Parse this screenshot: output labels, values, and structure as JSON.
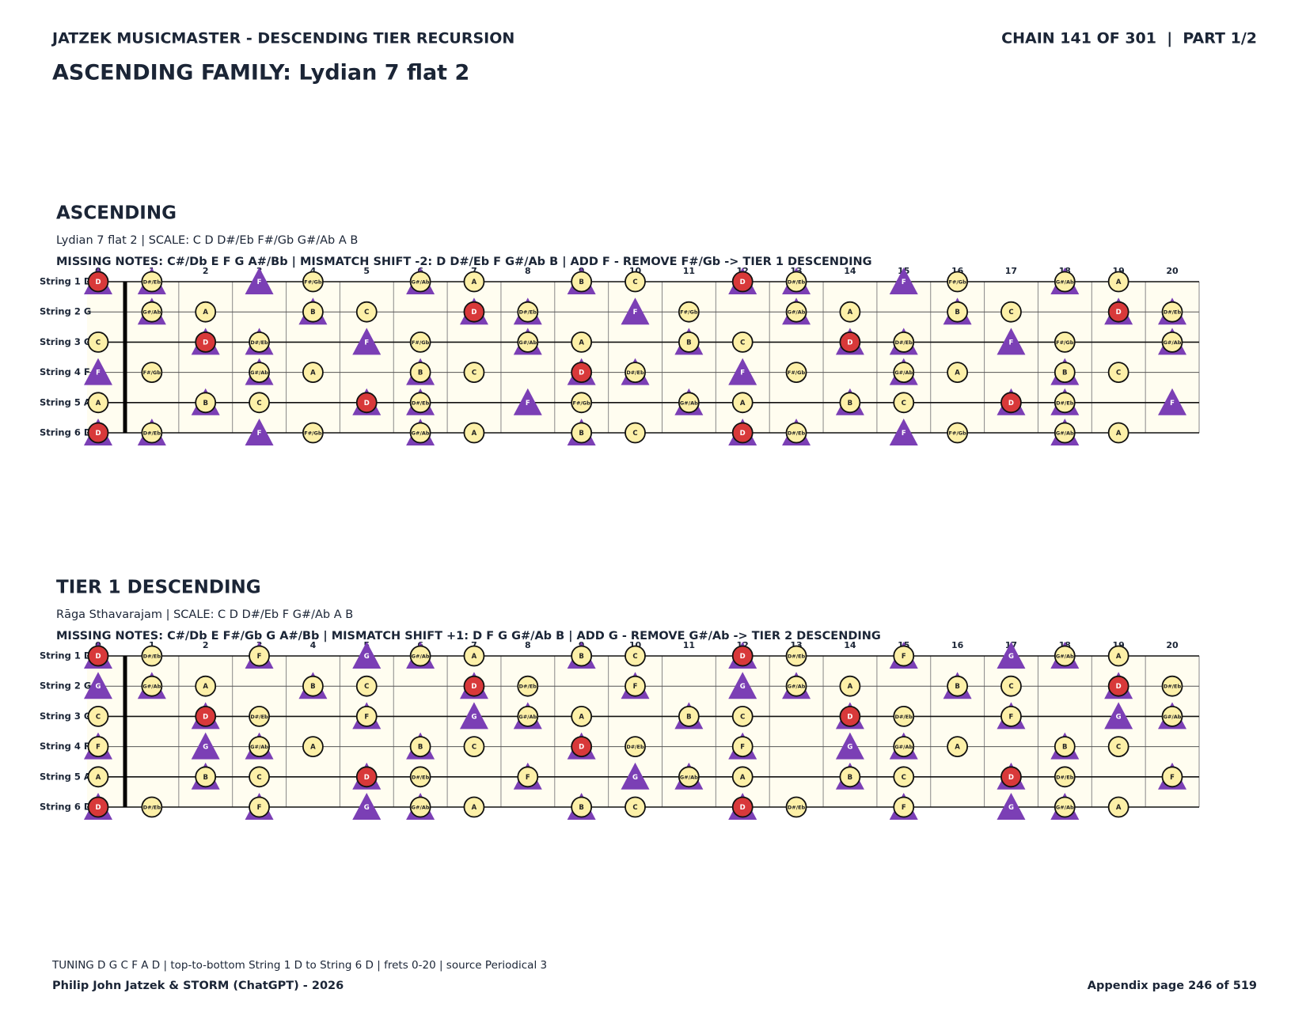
{
  "header": {
    "left": "JATZEK MUSICMASTER - DESCENDING TIER RECURSION",
    "right": "CHAIN 141 OF 301  |  PART 1/2",
    "title": "ASCENDING FAMILY: Lydian 7 flat 2"
  },
  "boards": [
    {
      "heading": "ASCENDING",
      "scale_line": "Lydian 7 flat 2  |  SCALE: C D D#/Eb F#/Gb G#/Ab A B",
      "missing_line": "MISSING NOTES: C#/Db E F G A#/Bb  |  MISMATCH SHIFT -2: D D#/Eb F G#/Ab B  |  ADD F - REMOVE F#/Gb -> TIER 1 DESCENDING",
      "string_labels": [
        "String 1 D",
        "String 2 G",
        "String 3 C",
        "String 4 F",
        "String 5 A",
        "String 6 D"
      ],
      "frets": [
        0,
        1,
        2,
        3,
        4,
        5,
        6,
        7,
        8,
        9,
        10,
        11,
        12,
        13,
        14,
        15,
        16,
        17,
        18,
        19,
        20
      ],
      "root": "D",
      "scale_notes": [
        "C",
        "D",
        "D#/Eb",
        "F#/Gb",
        "G#/Ab",
        "A",
        "B"
      ],
      "shift_notes": [
        "D",
        "D#/Eb",
        "F",
        "G#/Ab",
        "B"
      ],
      "notes": [
        [
          "D",
          "D#/Eb",
          null,
          "F",
          "F#/Gb",
          null,
          "G#/Ab",
          "A",
          null,
          "B",
          "C",
          null,
          "D",
          "D#/Eb",
          null,
          "F",
          "F#/Gb",
          null,
          "G#/Ab",
          "A",
          null
        ],
        [
          null,
          "G#/Ab",
          "A",
          null,
          "B",
          "C",
          null,
          "D",
          "D#/Eb",
          null,
          "F",
          "F#/Gb",
          null,
          "G#/Ab",
          "A",
          null,
          "B",
          "C",
          null,
          "D",
          "D#/Eb"
        ],
        [
          "C",
          null,
          "D",
          "D#/Eb",
          null,
          "F",
          "F#/Gb",
          null,
          "G#/Ab",
          "A",
          null,
          "B",
          "C",
          null,
          "D",
          "D#/Eb",
          null,
          "F",
          "F#/Gb",
          null,
          "G#/Ab"
        ],
        [
          "F",
          "F#/Gb",
          null,
          "G#/Ab",
          "A",
          null,
          "B",
          "C",
          null,
          "D",
          "D#/Eb",
          null,
          "F",
          "F#/Gb",
          null,
          "G#/Ab",
          "A",
          null,
          "B",
          "C",
          null
        ],
        [
          "A",
          null,
          "B",
          "C",
          null,
          "D",
          "D#/Eb",
          null,
          "F",
          "F#/Gb",
          null,
          "G#/Ab",
          "A",
          null,
          "B",
          "C",
          null,
          "D",
          "D#/Eb",
          null,
          "F"
        ],
        [
          "D",
          "D#/Eb",
          null,
          "F",
          "F#/Gb",
          null,
          "G#/Ab",
          "A",
          null,
          "B",
          "C",
          null,
          "D",
          "D#/Eb",
          null,
          "F",
          "F#/Gb",
          null,
          "G#/Ab",
          "A",
          null
        ]
      ]
    },
    {
      "heading": "TIER 1 DESCENDING",
      "scale_line": "Rāga Sthavarajam  |  SCALE: C D D#/Eb F G#/Ab A B",
      "missing_line": "MISSING NOTES: C#/Db E F#/Gb G A#/Bb  |  MISMATCH SHIFT +1: D F G G#/Ab B  |  ADD G - REMOVE G#/Ab -> TIER 2 DESCENDING",
      "string_labels": [
        "String 1 D",
        "String 2 G",
        "String 3 C",
        "String 4 F",
        "String 5 A",
        "String 6 D"
      ],
      "frets": [
        0,
        1,
        2,
        3,
        4,
        5,
        6,
        7,
        8,
        9,
        10,
        11,
        12,
        13,
        14,
        15,
        16,
        17,
        18,
        19,
        20
      ],
      "root": "D",
      "scale_notes": [
        "C",
        "D",
        "D#/Eb",
        "F",
        "G#/Ab",
        "A",
        "B"
      ],
      "shift_notes": [
        "D",
        "F",
        "G",
        "G#/Ab",
        "B"
      ],
      "notes": [
        [
          "D",
          "D#/Eb",
          null,
          "F",
          null,
          "G",
          "G#/Ab",
          "A",
          null,
          "B",
          "C",
          null,
          "D",
          "D#/Eb",
          null,
          "F",
          null,
          "G",
          "G#/Ab",
          "A",
          null
        ],
        [
          "G",
          "G#/Ab",
          "A",
          null,
          "B",
          "C",
          null,
          "D",
          "D#/Eb",
          null,
          "F",
          null,
          "G",
          "G#/Ab",
          "A",
          null,
          "B",
          "C",
          null,
          "D",
          "D#/Eb"
        ],
        [
          "C",
          null,
          "D",
          "D#/Eb",
          null,
          "F",
          null,
          "G",
          "G#/Ab",
          "A",
          null,
          "B",
          "C",
          null,
          "D",
          "D#/Eb",
          null,
          "F",
          null,
          "G",
          "G#/Ab"
        ],
        [
          "F",
          null,
          "G",
          "G#/Ab",
          "A",
          null,
          "B",
          "C",
          null,
          "D",
          "D#/Eb",
          null,
          "F",
          null,
          "G",
          "G#/Ab",
          "A",
          null,
          "B",
          "C",
          null
        ],
        [
          "A",
          null,
          "B",
          "C",
          null,
          "D",
          "D#/Eb",
          null,
          "F",
          null,
          "G",
          "G#/Ab",
          "A",
          null,
          "B",
          "C",
          null,
          "D",
          "D#/Eb",
          null,
          "F"
        ],
        [
          "D",
          "D#/Eb",
          null,
          "F",
          null,
          "G",
          "G#/Ab",
          "A",
          null,
          "B",
          "C",
          null,
          "D",
          "D#/Eb",
          null,
          "F",
          null,
          "G",
          "G#/Ab",
          "A",
          null
        ]
      ]
    }
  ],
  "footer": {
    "note": "TUNING D G C F A D | top-to-bottom String 1 D to String 6 D | frets 0-20 | source Periodical 3",
    "author": "Philip John Jatzek & STORM (ChatGPT) - 2026",
    "page": "Appendix page 246 of 519"
  }
}
